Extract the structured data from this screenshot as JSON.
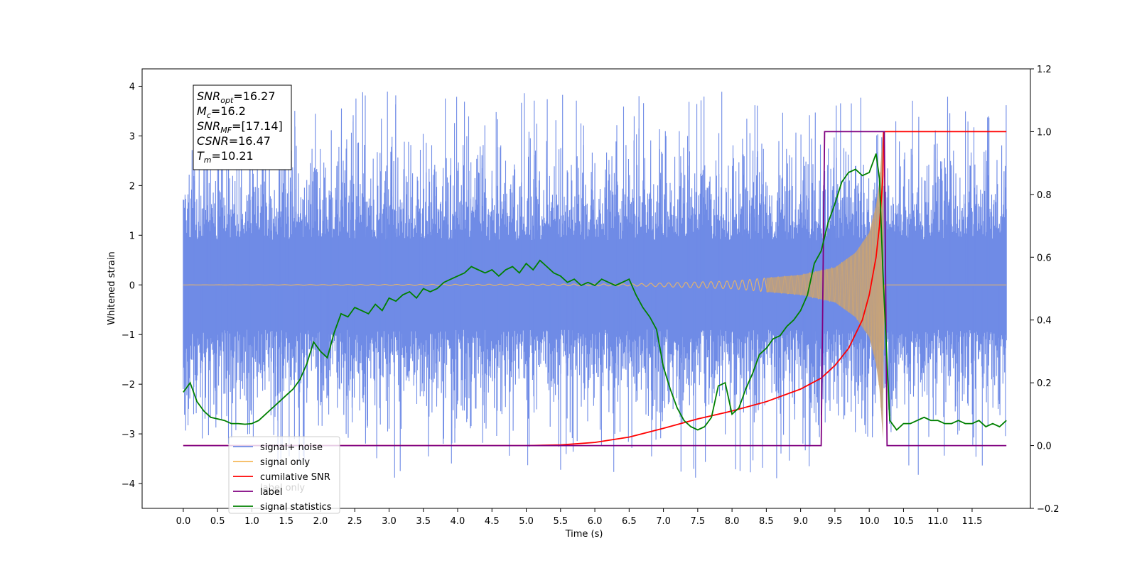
{
  "chart_data": {
    "type": "line",
    "title": "",
    "xlabel": "Time (s)",
    "ylabel": "Whitened strain",
    "y2label": "",
    "xlim": [
      -0.6,
      12.35
    ],
    "ylim": [
      -4.5,
      4.35
    ],
    "y2lim": [
      -0.2,
      1.2
    ],
    "xticks": [
      "0.0",
      "0.5",
      "1.0",
      "1.5",
      "2.0",
      "2.5",
      "3.0",
      "3.5",
      "4.0",
      "4.5",
      "5.0",
      "5.5",
      "6.0",
      "6.5",
      "7.0",
      "7.5",
      "8.0",
      "8.5",
      "9.0",
      "9.5",
      "10.0",
      "10.5",
      "11.0",
      "11.5"
    ],
    "yticks": [
      "4",
      "3",
      "2",
      "1",
      "0",
      "−1",
      "−2",
      "−3",
      "−4"
    ],
    "y2ticks": [
      "1.2",
      "1.0",
      "0.8",
      "0.6",
      "0.4",
      "0.2",
      "0.0",
      "−0.2"
    ],
    "grid": false,
    "legend_position": "bottom-left",
    "legend": [
      {
        "label": "signal+ noise",
        "color": "#6f8be6"
      },
      {
        "label": "signal only",
        "color": "#f5b85a"
      },
      {
        "label": "cumilative SNR",
        "color": "#ff0000"
      },
      {
        "label": "label",
        "color": "#800080"
      },
      {
        "label": "signal statistics",
        "color": "#008000"
      }
    ],
    "hidden_legend_text": "label only",
    "info_box": [
      {
        "sym": "SNR",
        "sub": "opt",
        "val": "=16.27"
      },
      {
        "sym": "M",
        "sub": "c",
        "val": "=16.2"
      },
      {
        "sym": "SNR",
        "sub": "MF",
        "val": "=[17.14]"
      },
      {
        "sym": "CSNR",
        "sub": "",
        "val": "=16.47"
      },
      {
        "sym": "T",
        "sub": "m",
        "val": "=10.21"
      }
    ],
    "series": [
      {
        "name": "signal+ noise",
        "axis": "left",
        "kind": "noise",
        "x_range": [
          0.0,
          12.0
        ],
        "spread_normal": 1.0,
        "spread_max": 4.0,
        "color": "#6f8be6"
      },
      {
        "name": "signal only",
        "axis": "left",
        "kind": "chirp",
        "x_range": [
          0.0,
          12.0
        ],
        "merger_time": 10.21,
        "envelope_points": [
          [
            0.0,
            0.0
          ],
          [
            6.5,
            0.02
          ],
          [
            8.0,
            0.08
          ],
          [
            9.0,
            0.2
          ],
          [
            9.5,
            0.35
          ],
          [
            9.8,
            0.65
          ],
          [
            10.0,
            1.05
          ],
          [
            10.1,
            1.6
          ],
          [
            10.15,
            2.1
          ],
          [
            10.2,
            3.1
          ],
          [
            10.22,
            0.0
          ],
          [
            12.0,
            0.0
          ]
        ],
        "color": "#f5b85a"
      },
      {
        "name": "cumilative SNR",
        "axis": "right",
        "x": [
          0.0,
          5.0,
          5.5,
          6.0,
          6.5,
          7.0,
          7.5,
          8.0,
          8.5,
          9.0,
          9.3,
          9.5,
          9.7,
          9.9,
          10.0,
          10.1,
          10.15,
          10.2,
          10.21,
          10.25,
          12.0
        ],
        "y": [
          0.0,
          0.0,
          0.002,
          0.01,
          0.027,
          0.055,
          0.085,
          0.11,
          0.14,
          0.18,
          0.215,
          0.255,
          0.31,
          0.4,
          0.48,
          0.6,
          0.7,
          0.86,
          1.0,
          1.0,
          1.0
        ],
        "color": "#ff0000"
      },
      {
        "name": "label",
        "axis": "right",
        "x": [
          0.0,
          9.3,
          9.35,
          10.22,
          10.26,
          12.0
        ],
        "y": [
          0.0,
          0.0,
          1.0,
          1.0,
          0.0,
          0.0
        ],
        "color": "#800080"
      },
      {
        "name": "signal statistics",
        "axis": "right",
        "x": [
          0.0,
          0.1,
          0.2,
          0.3,
          0.4,
          0.5,
          0.6,
          0.7,
          0.8,
          0.9,
          1.0,
          1.1,
          1.2,
          1.3,
          1.4,
          1.5,
          1.6,
          1.7,
          1.8,
          1.9,
          2.0,
          2.1,
          2.2,
          2.3,
          2.4,
          2.5,
          2.6,
          2.7,
          2.8,
          2.9,
          3.0,
          3.1,
          3.2,
          3.3,
          3.4,
          3.5,
          3.6,
          3.7,
          3.8,
          3.9,
          4.0,
          4.1,
          4.2,
          4.3,
          4.4,
          4.5,
          4.6,
          4.7,
          4.8,
          4.9,
          5.0,
          5.1,
          5.2,
          5.3,
          5.4,
          5.5,
          5.6,
          5.7,
          5.8,
          5.9,
          6.0,
          6.1,
          6.2,
          6.3,
          6.4,
          6.5,
          6.6,
          6.7,
          6.8,
          6.9,
          7.0,
          7.1,
          7.2,
          7.3,
          7.4,
          7.5,
          7.6,
          7.7,
          7.8,
          7.9,
          8.0,
          8.1,
          8.2,
          8.3,
          8.4,
          8.5,
          8.6,
          8.7,
          8.8,
          8.9,
          9.0,
          9.1,
          9.2,
          9.3,
          9.4,
          9.5,
          9.6,
          9.7,
          9.8,
          9.9,
          10.0,
          10.1,
          10.15,
          10.2,
          10.3,
          10.4,
          10.5,
          10.6,
          10.7,
          10.8,
          10.9,
          11.0,
          11.1,
          11.2,
          11.3,
          11.4,
          11.5,
          11.6,
          11.7,
          11.8,
          11.9,
          12.0
        ],
        "y": [
          0.17,
          0.2,
          0.14,
          0.11,
          0.09,
          0.085,
          0.08,
          0.07,
          0.07,
          0.068,
          0.07,
          0.08,
          0.1,
          0.12,
          0.14,
          0.16,
          0.18,
          0.21,
          0.26,
          0.33,
          0.3,
          0.28,
          0.36,
          0.42,
          0.41,
          0.44,
          0.43,
          0.42,
          0.45,
          0.43,
          0.47,
          0.46,
          0.48,
          0.49,
          0.47,
          0.5,
          0.49,
          0.5,
          0.52,
          0.53,
          0.54,
          0.55,
          0.57,
          0.56,
          0.55,
          0.56,
          0.54,
          0.56,
          0.57,
          0.55,
          0.58,
          0.56,
          0.59,
          0.57,
          0.55,
          0.54,
          0.52,
          0.53,
          0.51,
          0.52,
          0.51,
          0.53,
          0.52,
          0.51,
          0.52,
          0.53,
          0.48,
          0.44,
          0.41,
          0.37,
          0.25,
          0.18,
          0.12,
          0.08,
          0.06,
          0.05,
          0.06,
          0.09,
          0.19,
          0.2,
          0.1,
          0.12,
          0.18,
          0.23,
          0.29,
          0.31,
          0.34,
          0.35,
          0.38,
          0.4,
          0.43,
          0.48,
          0.58,
          0.62,
          0.71,
          0.77,
          0.84,
          0.87,
          0.88,
          0.86,
          0.87,
          0.93,
          0.85,
          0.55,
          0.08,
          0.05,
          0.07,
          0.07,
          0.08,
          0.09,
          0.08,
          0.08,
          0.07,
          0.07,
          0.08,
          0.07,
          0.07,
          0.08,
          0.06,
          0.07,
          0.06,
          0.08
        ],
        "color": "#008000"
      }
    ]
  }
}
